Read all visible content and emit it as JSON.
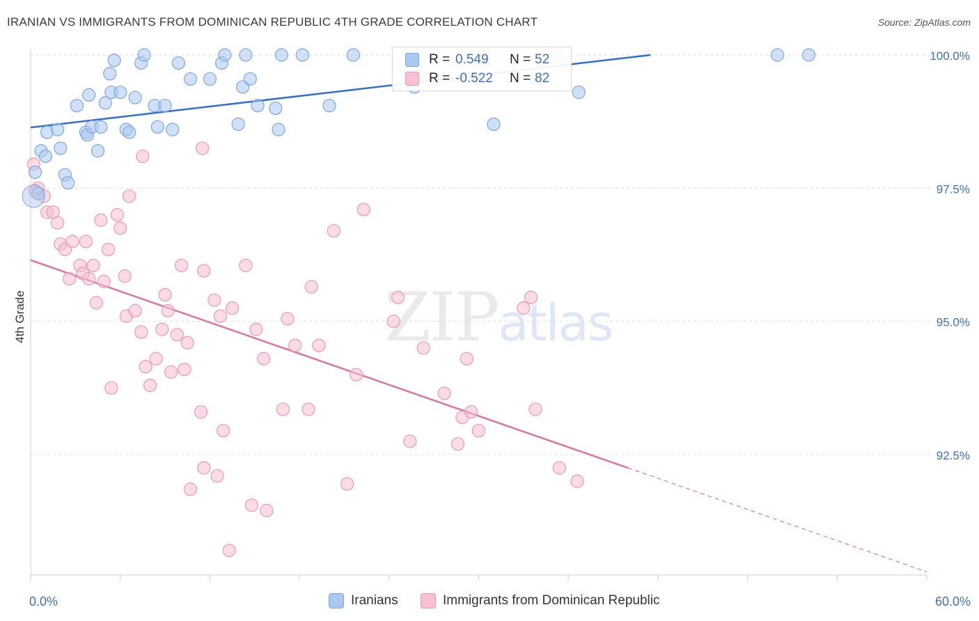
{
  "title": "IRANIAN VS IMMIGRANTS FROM DOMINICAN REPUBLIC 4TH GRADE CORRELATION CHART",
  "source": "Source: ZipAtlas.com",
  "watermark": {
    "zip": "ZIP",
    "atlas": "atlas"
  },
  "legend": {
    "rows": [
      {
        "r_label": "R =",
        "r_value": "0.549",
        "n_label": "N =",
        "n_value": "52",
        "color": "#aac8f0",
        "border": "#7aa6e0"
      },
      {
        "r_label": "R =",
        "r_value": "-0.522",
        "n_label": "N =",
        "n_value": "82",
        "color": "#f8c0d0",
        "border": "#e898b0"
      }
    ]
  },
  "bottom_legend": [
    {
      "label": "Iranians",
      "color": "#aac8f0",
      "border": "#7aa6e0"
    },
    {
      "label": "Immigrants from Dominican Republic",
      "color": "#f8c0d0",
      "border": "#e898b0"
    }
  ],
  "chart_data": {
    "type": "scatter",
    "title": "IRANIAN VS IMMIGRANTS FROM DOMINICAN REPUBLIC 4TH GRADE CORRELATION CHART",
    "xlabel": "",
    "ylabel": "4th Grade",
    "xlim": [
      0,
      60
    ],
    "ylim": [
      90.0,
      100.4
    ],
    "x_tick_labels": [
      "0.0%",
      "60.0%"
    ],
    "y_ticks": [
      {
        "value": 100.0,
        "label": "100.0%"
      },
      {
        "value": 97.5,
        "label": "97.5%"
      },
      {
        "value": 95.0,
        "label": "95.0%"
      },
      {
        "value": 92.5,
        "label": "92.5%"
      }
    ],
    "grid": true,
    "series": [
      {
        "name": "Iranians",
        "color": "#aac8f0",
        "stroke": "#7aa6e0",
        "trend": {
          "x": [
            0,
            41.5
          ],
          "y": [
            98.64,
            100.0
          ],
          "color": "#2f6fd0",
          "extrapolate_to": null
        },
        "points": [
          [
            0.3,
            97.8
          ],
          [
            0.5,
            97.4
          ],
          [
            0.7,
            98.2
          ],
          [
            1.0,
            98.1
          ],
          [
            1.1,
            98.55
          ],
          [
            1.8,
            98.6
          ],
          [
            2.0,
            98.25
          ],
          [
            2.3,
            97.75
          ],
          [
            2.5,
            97.6
          ],
          [
            3.1,
            99.05
          ],
          [
            3.7,
            98.55
          ],
          [
            3.8,
            98.5
          ],
          [
            3.9,
            99.25
          ],
          [
            4.1,
            98.65
          ],
          [
            4.5,
            98.2
          ],
          [
            4.7,
            98.65
          ],
          [
            5.0,
            99.1
          ],
          [
            5.3,
            99.65
          ],
          [
            5.4,
            99.3
          ],
          [
            5.6,
            99.9
          ],
          [
            6.0,
            99.3
          ],
          [
            6.4,
            98.6
          ],
          [
            6.6,
            98.55
          ],
          [
            7.0,
            99.2
          ],
          [
            7.4,
            99.85
          ],
          [
            7.6,
            100.0
          ],
          [
            8.3,
            99.05
          ],
          [
            8.5,
            98.65
          ],
          [
            9.0,
            99.05
          ],
          [
            9.5,
            98.6
          ],
          [
            9.9,
            99.85
          ],
          [
            10.7,
            99.55
          ],
          [
            12.0,
            99.55
          ],
          [
            12.8,
            99.85
          ],
          [
            13.0,
            100.0
          ],
          [
            13.9,
            98.7
          ],
          [
            14.2,
            99.4
          ],
          [
            14.4,
            100.0
          ],
          [
            14.7,
            99.55
          ],
          [
            15.2,
            99.05
          ],
          [
            16.4,
            99.0
          ],
          [
            16.6,
            98.6
          ],
          [
            16.8,
            100.0
          ],
          [
            18.2,
            100.0
          ],
          [
            20.0,
            99.05
          ],
          [
            21.6,
            100.0
          ],
          [
            25.7,
            99.4
          ],
          [
            31.0,
            98.7
          ],
          [
            35.3,
            100.0
          ],
          [
            36.7,
            99.3
          ],
          [
            50.0,
            100.0
          ],
          [
            52.1,
            100.0
          ]
        ]
      },
      {
        "name": "Immigrants from Dominican Republic",
        "color": "#f8c0d0",
        "stroke": "#e898b0",
        "trend": {
          "x": [
            0,
            40
          ],
          "y": [
            96.15,
            92.25
          ],
          "color": "#e0739b",
          "extrapolate_to": [
            60,
            90.3
          ]
        },
        "points": [
          [
            0.2,
            97.95
          ],
          [
            0.5,
            97.5
          ],
          [
            0.9,
            97.35
          ],
          [
            1.1,
            97.05
          ],
          [
            1.5,
            97.05
          ],
          [
            1.8,
            96.85
          ],
          [
            2.0,
            96.45
          ],
          [
            2.3,
            96.35
          ],
          [
            2.6,
            95.8
          ],
          [
            2.8,
            96.5
          ],
          [
            3.3,
            96.05
          ],
          [
            3.5,
            95.9
          ],
          [
            3.7,
            96.5
          ],
          [
            3.9,
            95.8
          ],
          [
            4.2,
            96.05
          ],
          [
            4.4,
            95.35
          ],
          [
            4.7,
            96.9
          ],
          [
            4.9,
            95.75
          ],
          [
            5.2,
            96.35
          ],
          [
            5.4,
            93.75
          ],
          [
            5.8,
            97.0
          ],
          [
            6.0,
            96.75
          ],
          [
            6.3,
            95.85
          ],
          [
            6.4,
            95.1
          ],
          [
            6.6,
            97.35
          ],
          [
            7.0,
            95.2
          ],
          [
            7.4,
            94.8
          ],
          [
            7.5,
            98.1
          ],
          [
            7.7,
            94.15
          ],
          [
            8.0,
            93.8
          ],
          [
            8.4,
            94.3
          ],
          [
            8.8,
            94.85
          ],
          [
            9.0,
            95.5
          ],
          [
            9.2,
            95.2
          ],
          [
            9.4,
            94.05
          ],
          [
            9.8,
            94.75
          ],
          [
            10.1,
            96.05
          ],
          [
            10.3,
            94.1
          ],
          [
            10.5,
            94.6
          ],
          [
            10.7,
            91.85
          ],
          [
            11.4,
            93.3
          ],
          [
            11.6,
            92.25
          ],
          [
            11.5,
            98.25
          ],
          [
            11.6,
            95.95
          ],
          [
            12.3,
            95.4
          ],
          [
            12.5,
            92.1
          ],
          [
            12.7,
            95.1
          ],
          [
            12.9,
            92.95
          ],
          [
            13.3,
            90.7
          ],
          [
            13.5,
            95.25
          ],
          [
            14.4,
            96.05
          ],
          [
            14.8,
            91.55
          ],
          [
            15.1,
            94.85
          ],
          [
            15.6,
            94.3
          ],
          [
            15.8,
            91.45
          ],
          [
            16.5,
            90.15
          ],
          [
            16.9,
            93.35
          ],
          [
            17.2,
            95.05
          ],
          [
            17.7,
            94.55
          ],
          [
            18.6,
            93.35
          ],
          [
            18.8,
            95.65
          ],
          [
            19.3,
            94.55
          ],
          [
            20.3,
            96.7
          ],
          [
            21.2,
            91.95
          ],
          [
            21.8,
            94.0
          ],
          [
            22.3,
            97.1
          ],
          [
            24.3,
            95.0
          ],
          [
            24.6,
            95.45
          ],
          [
            25.4,
            92.75
          ],
          [
            26.3,
            94.5
          ],
          [
            27.7,
            93.65
          ],
          [
            28.6,
            92.7
          ],
          [
            28.9,
            93.2
          ],
          [
            29.2,
            94.3
          ],
          [
            29.5,
            93.3
          ],
          [
            30.0,
            92.95
          ],
          [
            33.0,
            95.25
          ],
          [
            33.5,
            95.45
          ],
          [
            33.8,
            93.35
          ],
          [
            35.4,
            92.25
          ],
          [
            36.6,
            92.0
          ],
          [
            0.3,
            97.45
          ]
        ]
      }
    ]
  }
}
